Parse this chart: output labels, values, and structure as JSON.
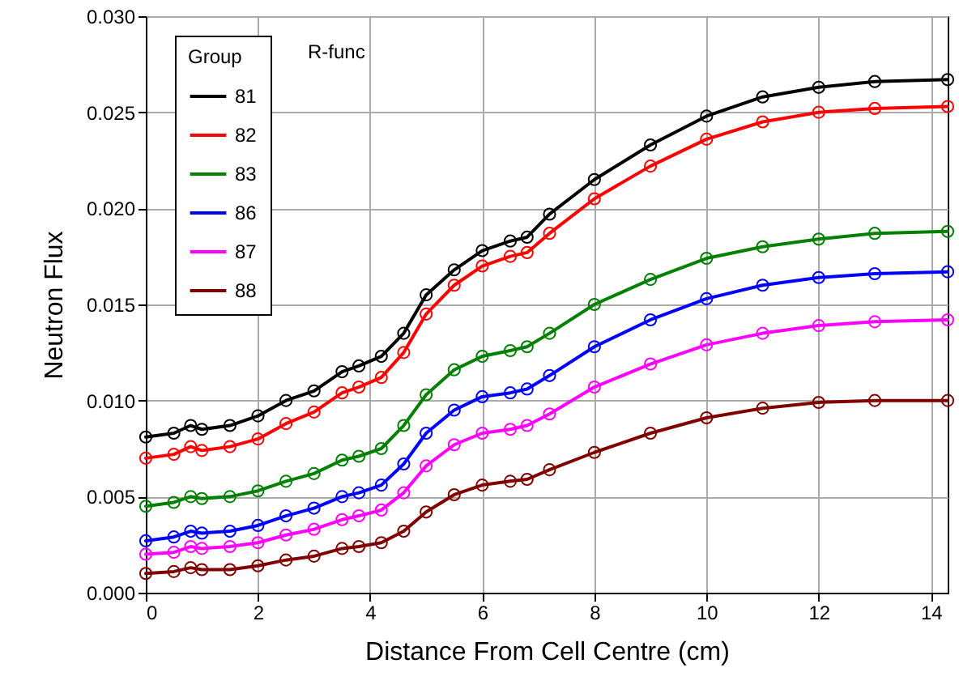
{
  "chart_data": {
    "type": "line",
    "xlabel": "Distance From Cell Centre (cm)",
    "ylabel": "Neutron Flux",
    "legend_title": "Group",
    "annotations": [
      "R-func"
    ],
    "x": [
      0,
      0.5,
      0.8,
      1,
      1.5,
      2,
      2.5,
      3,
      3.5,
      3.8,
      4.2,
      4.6,
      5,
      5.5,
      6,
      6.5,
      6.8,
      7.2,
      8,
      9,
      10,
      11,
      12,
      13,
      14.3
    ],
    "xlim": [
      0,
      14.3
    ],
    "xticks": [
      0,
      2,
      4,
      6,
      8,
      10,
      12,
      14
    ],
    "ylim": [
      0,
      0.03
    ],
    "yticks": [
      {
        "value": 0,
        "label": "0.000"
      },
      {
        "value": 0.005,
        "label": "0.005"
      },
      {
        "value": 0.01,
        "label": "0.010"
      },
      {
        "value": 0.015,
        "label": "0.015"
      },
      {
        "value": 0.02,
        "label": "0.020"
      },
      {
        "value": 0.025,
        "label": "0.025"
      },
      {
        "value": 0.03,
        "label": "0.030"
      }
    ],
    "grid": true,
    "legend": "top left",
    "line_style": "solid",
    "series": [
      {
        "type": "scatter",
        "marker": "circle",
        "color": "#000000",
        "values": [
          0.0081,
          0.0083,
          0.0087,
          0.0085,
          0.0087,
          0.0092,
          0.01,
          0.0105,
          0.0115,
          0.0118,
          0.0123,
          0.0135,
          0.0155,
          0.0168,
          0.0178,
          0.0183,
          0.0185,
          0.0197,
          0.0215,
          0.0233,
          0.0248,
          0.0258,
          0.0263,
          0.0266,
          0.0267
        ]
      },
      {
        "type": "scatter",
        "marker": "circle",
        "color": "#ff0000",
        "values": [
          0.007,
          0.0072,
          0.0076,
          0.0074,
          0.0076,
          0.008,
          0.0088,
          0.0094,
          0.0104,
          0.0107,
          0.0112,
          0.0125,
          0.0145,
          0.016,
          0.017,
          0.0175,
          0.0177,
          0.0187,
          0.0205,
          0.0222,
          0.0236,
          0.0245,
          0.025,
          0.0252,
          0.0253
        ]
      },
      {
        "type": "scatter",
        "marker": "circle",
        "color": "#008000",
        "values": [
          0.0045,
          0.0047,
          0.005,
          0.0049,
          0.005,
          0.0053,
          0.0058,
          0.0062,
          0.0069,
          0.0071,
          0.0075,
          0.0087,
          0.0103,
          0.0116,
          0.0123,
          0.0126,
          0.0128,
          0.0135,
          0.015,
          0.0163,
          0.0174,
          0.018,
          0.0184,
          0.0187,
          0.0188
        ]
      },
      {
        "type": "scatter",
        "marker": "circle",
        "color": "#0000ff",
        "values": [
          0.0027,
          0.0029,
          0.0032,
          0.0031,
          0.0032,
          0.0035,
          0.004,
          0.0044,
          0.005,
          0.0052,
          0.0056,
          0.0067,
          0.0083,
          0.0095,
          0.0102,
          0.0104,
          0.0106,
          0.0113,
          0.0128,
          0.0142,
          0.0153,
          0.016,
          0.0164,
          0.0166,
          0.0167
        ]
      },
      {
        "type": "scatter",
        "marker": "circle",
        "color": "#ff00ff",
        "values": [
          0.002,
          0.0021,
          0.0024,
          0.0023,
          0.0024,
          0.0026,
          0.003,
          0.0033,
          0.0038,
          0.004,
          0.0043,
          0.0052,
          0.0066,
          0.0077,
          0.0083,
          0.0085,
          0.0087,
          0.0093,
          0.0107,
          0.0119,
          0.0129,
          0.0135,
          0.0139,
          0.0141,
          0.0142
        ]
      },
      {
        "type": "scatter",
        "marker": "circle",
        "color": "#800000",
        "values": [
          0.001,
          0.0011,
          0.0013,
          0.0012,
          0.0012,
          0.0014,
          0.0017,
          0.0019,
          0.0023,
          0.0024,
          0.0026,
          0.0032,
          0.0042,
          0.0051,
          0.0056,
          0.0058,
          0.0059,
          0.0064,
          0.0073,
          0.0083,
          0.0091,
          0.0096,
          0.0099,
          0.01,
          0.01
        ]
      },
      {
        "type": "line",
        "name": "81",
        "color": "#000000",
        "values": [
          0.0081,
          0.0083,
          0.0087,
          0.0085,
          0.0087,
          0.0092,
          0.01,
          0.0105,
          0.0115,
          0.0118,
          0.0123,
          0.0135,
          0.0155,
          0.0168,
          0.0178,
          0.0183,
          0.0185,
          0.0197,
          0.0215,
          0.0233,
          0.0248,
          0.0258,
          0.0263,
          0.0266,
          0.0267
        ]
      },
      {
        "type": "line",
        "name": "82",
        "color": "#ff0000",
        "values": [
          0.007,
          0.0072,
          0.0076,
          0.0074,
          0.0076,
          0.008,
          0.0088,
          0.0094,
          0.0104,
          0.0107,
          0.0112,
          0.0125,
          0.0145,
          0.016,
          0.017,
          0.0175,
          0.0177,
          0.0187,
          0.0205,
          0.0222,
          0.0236,
          0.0245,
          0.025,
          0.0252,
          0.0253
        ]
      },
      {
        "type": "line",
        "name": "83",
        "color": "#008000",
        "values": [
          0.0045,
          0.0047,
          0.005,
          0.0049,
          0.005,
          0.0053,
          0.0058,
          0.0062,
          0.0069,
          0.0071,
          0.0075,
          0.0087,
          0.0103,
          0.0116,
          0.0123,
          0.0126,
          0.0128,
          0.0135,
          0.015,
          0.0163,
          0.0174,
          0.018,
          0.0184,
          0.0187,
          0.0188
        ]
      },
      {
        "type": "line",
        "name": "86",
        "color": "#0000ff",
        "values": [
          0.0027,
          0.0029,
          0.0032,
          0.0031,
          0.0032,
          0.0035,
          0.004,
          0.0044,
          0.005,
          0.0052,
          0.0056,
          0.0067,
          0.0083,
          0.0095,
          0.0102,
          0.0104,
          0.0106,
          0.0113,
          0.0128,
          0.0142,
          0.0153,
          0.016,
          0.0164,
          0.0166,
          0.0167
        ]
      },
      {
        "type": "line",
        "name": "87",
        "color": "#ff00ff",
        "values": [
          0.002,
          0.0021,
          0.0024,
          0.0023,
          0.0024,
          0.0026,
          0.003,
          0.0033,
          0.0038,
          0.004,
          0.0043,
          0.0052,
          0.0066,
          0.0077,
          0.0083,
          0.0085,
          0.0087,
          0.0093,
          0.0107,
          0.0119,
          0.0129,
          0.0135,
          0.0139,
          0.0141,
          0.0142
        ]
      },
      {
        "type": "line",
        "name": "88",
        "color": "#800000",
        "values": [
          0.001,
          0.0011,
          0.0013,
          0.0012,
          0.0012,
          0.0014,
          0.0017,
          0.0019,
          0.0023,
          0.0024,
          0.0026,
          0.0032,
          0.0042,
          0.0051,
          0.0056,
          0.0058,
          0.0059,
          0.0064,
          0.0073,
          0.0083,
          0.0091,
          0.0096,
          0.0099,
          0.01,
          0.01
        ]
      }
    ]
  }
}
